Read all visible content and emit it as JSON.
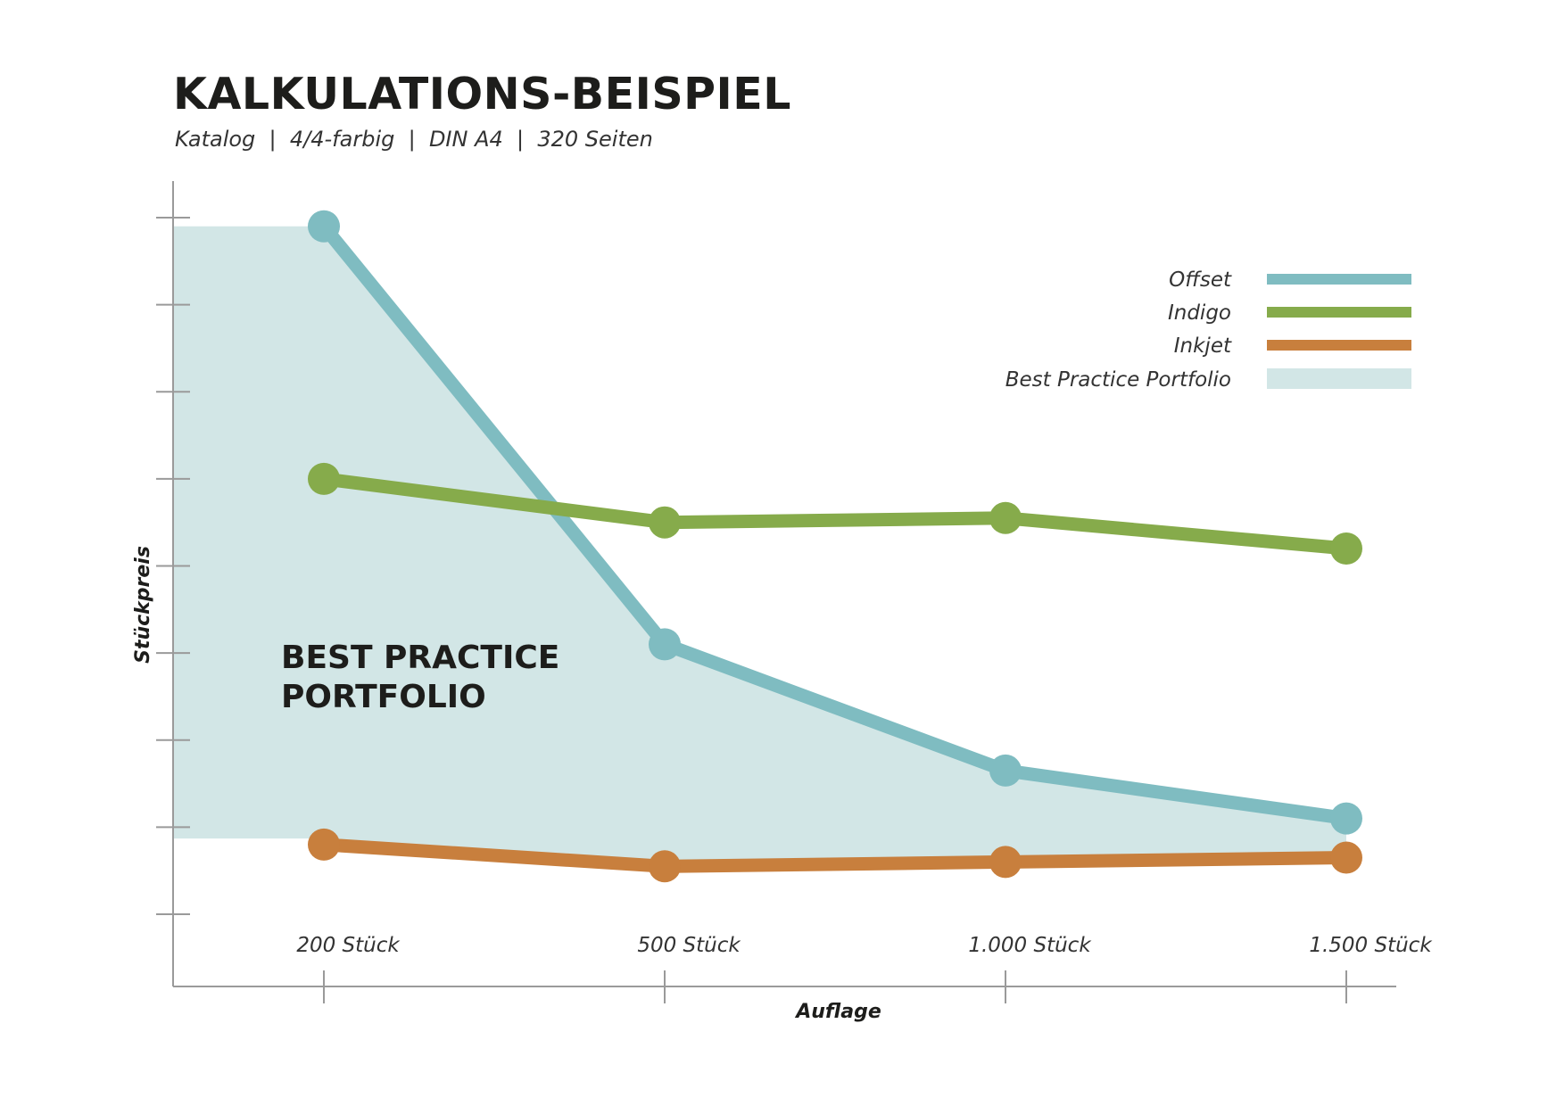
{
  "header": {
    "title": "KALKULATIONS-BEISPIEL",
    "subtitle": "Katalog  |  4/4-farbig  |  DIN A4  |  320 Seiten"
  },
  "colors": {
    "offset": "#7fbcc1",
    "indigo": "#86ab4b",
    "inkjet": "#c87f3d",
    "best_practice": "#d2e6e6",
    "axis": "#9a9a9a"
  },
  "chart_data": {
    "type": "line",
    "title": "KALKULATIONS-BEISPIEL",
    "subtitle": "Katalog  |  4/4-farbig  |  DIN A4  |  320 Seiten",
    "xlabel": "Auflage",
    "ylabel": "Stückpreis",
    "categories": [
      "200 Stück",
      "500 Stück",
      "1.000 Stück",
      "1.500 Stück"
    ],
    "ylim": [
      0,
      8
    ],
    "y_tick_count": 9,
    "y_tick_labels_shown": false,
    "grid": false,
    "legend_position": "top-right",
    "series": [
      {
        "name": "Offset",
        "color_key": "offset",
        "values": [
          7.9,
          3.1,
          1.65,
          1.1
        ]
      },
      {
        "name": "Indigo",
        "color_key": "indigo",
        "values": [
          5.0,
          4.5,
          4.55,
          4.2
        ]
      },
      {
        "name": "Inkjet",
        "color_key": "inkjet",
        "values": [
          0.8,
          0.55,
          0.6,
          0.65
        ]
      }
    ],
    "area": {
      "name": "Best Practice Portfolio",
      "label_lines": [
        "BEST PRACTICE",
        "PORTFOLIO"
      ],
      "color_key": "best_practice",
      "upper": [
        7.9,
        3.1,
        1.65,
        1.1
      ],
      "lower": [
        0.87,
        0.55,
        0.6,
        0.65
      ],
      "left_edge": {
        "upper": 7.9,
        "lower": 0.87
      }
    }
  }
}
